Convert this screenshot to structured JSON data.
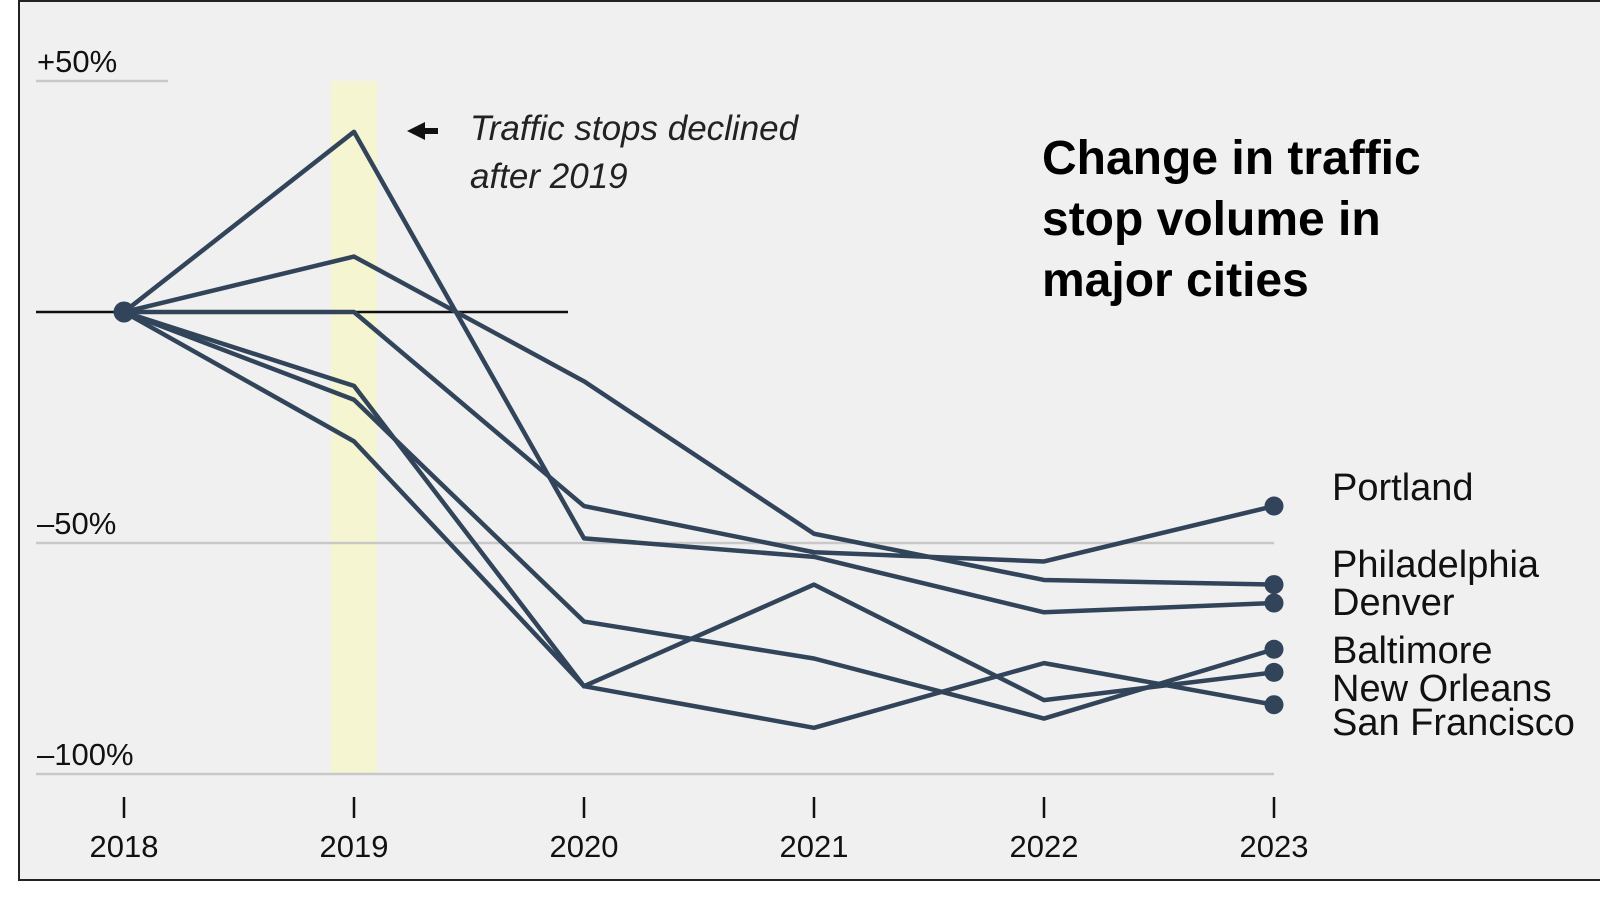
{
  "chart_data": {
    "type": "line",
    "title": "Change in traffic stop volume in major cities",
    "x": [
      2018,
      2019,
      2020,
      2021,
      2022,
      2023
    ],
    "x_tick_labels": [
      "2018",
      "2019",
      "2020",
      "2021",
      "2022",
      "2023"
    ],
    "y_tick_labels": [
      {
        "value": 50,
        "label": "+50%"
      },
      {
        "value": -50,
        "label": "–50%"
      },
      {
        "value": -100,
        "label": "–100%"
      }
    ],
    "ylim": [
      -100,
      50
    ],
    "baseline": 0,
    "highlight_x": 2019,
    "annotation": {
      "line1": "Traffic stops declined",
      "line2": "after 2019",
      "x": 2019
    },
    "series": [
      {
        "name": "Portland",
        "values": [
          0,
          0,
          -42,
          -52,
          -54,
          -42
        ]
      },
      {
        "name": "Philadelphia",
        "values": [
          0,
          12,
          -15,
          -48,
          -58,
          -59
        ]
      },
      {
        "name": "Denver",
        "values": [
          0,
          39,
          -49,
          -53,
          -65,
          -63
        ]
      },
      {
        "name": "Baltimore",
        "values": [
          0,
          -19,
          -67,
          -75,
          -88,
          -73
        ]
      },
      {
        "name": "New Orleans",
        "values": [
          0,
          -16,
          -81,
          -59,
          -84,
          -78
        ]
      },
      {
        "name": "San Francisco",
        "values": [
          0,
          -28,
          -81,
          -90,
          -76,
          -85
        ]
      }
    ],
    "colors": {
      "line": "#32445a",
      "highlight": "#f5f5d2",
      "grid": "#c8c8c8",
      "baseline": "#111111"
    }
  }
}
